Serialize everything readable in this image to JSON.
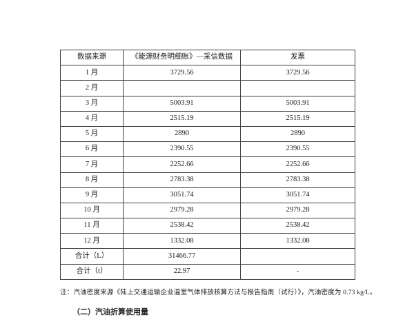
{
  "table": {
    "columns": {
      "source": "数据来源",
      "ledger": "《能源财务明细账》—采信数据",
      "invoice": "发票"
    },
    "rows": [
      {
        "label": "1 月",
        "ledger": "3729.56",
        "invoice": "3729.56"
      },
      {
        "label": "2 月",
        "ledger": "",
        "invoice": ""
      },
      {
        "label": "3 月",
        "ledger": "5003.91",
        "invoice": "5003.91"
      },
      {
        "label": "4 月",
        "ledger": "2515.19",
        "invoice": "2515.19"
      },
      {
        "label": "5 月",
        "ledger": "2890",
        "invoice": "2890"
      },
      {
        "label": "6 月",
        "ledger": "2390.55",
        "invoice": "2390.55"
      },
      {
        "label": "7 月",
        "ledger": "2252.66",
        "invoice": "2252.66"
      },
      {
        "label": "8 月",
        "ledger": "2783.38",
        "invoice": "2783.38"
      },
      {
        "label": "9 月",
        "ledger": "3051.74",
        "invoice": "3051.74"
      },
      {
        "label": "10 月",
        "ledger": "2979.28",
        "invoice": "2979.28"
      },
      {
        "label": "11 月",
        "ledger": "2538.42",
        "invoice": "2538.42"
      },
      {
        "label": "12 月",
        "ledger": "1332.08",
        "invoice": "1332.08"
      },
      {
        "label": "合计（L）",
        "ledger": "31466.77",
        "invoice": ""
      },
      {
        "label": "合计（t）",
        "ledger": "22.97",
        "invoice": "-"
      }
    ]
  },
  "note": "注：汽油密度来源《陆上交通运输企业温室气体排放核算方法与报告指南（试行）》，汽油密度为 0.73 kg/L。",
  "clipped_heading": "（二）汽油折算使用量",
  "colors": {
    "page_background": "#ffffff",
    "table_border": "#3d3d3d",
    "text": "#1a1a1a"
  }
}
